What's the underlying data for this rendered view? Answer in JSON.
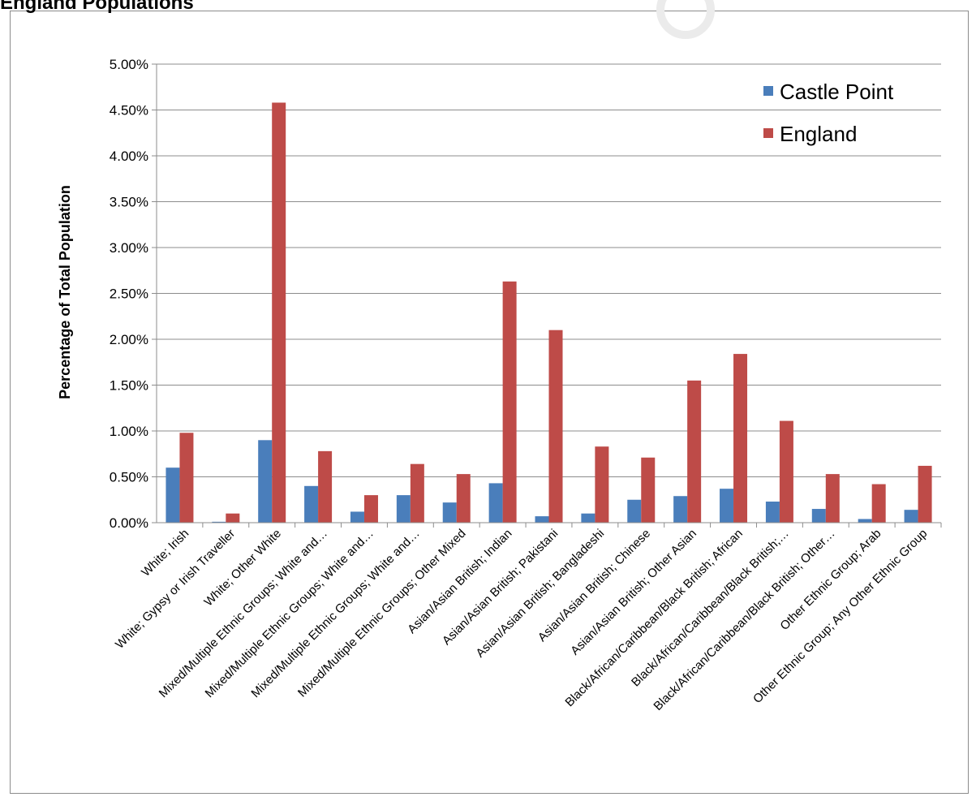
{
  "page_title": "England Populations",
  "chart_data": {
    "type": "bar",
    "title": "",
    "xlabel": "",
    "ylabel": "Percentage of Total Population",
    "ylim": [
      0,
      5
    ],
    "y_ticks": [
      "0.00%",
      "0.50%",
      "1.00%",
      "1.50%",
      "2.00%",
      "2.50%",
      "3.00%",
      "3.50%",
      "4.00%",
      "4.50%",
      "5.00%"
    ],
    "grid": true,
    "legend": "top-right",
    "categories": [
      "White; Irish",
      "White; Gypsy or Irish Traveller",
      "White; Other White",
      "Mixed/Multiple Ethnic Groups; White and…",
      "Mixed/Multiple Ethnic Groups; White and…",
      "Mixed/Multiple Ethnic Groups; White and…",
      "Mixed/Multiple Ethnic Groups; Other Mixed",
      "Asian/Asian British; Indian",
      "Asian/Asian British; Pakistani",
      "Asian/Asian British; Bangladeshi",
      "Asian/Asian British; Chinese",
      "Asian/Asian British; Other Asian",
      "Black/African/Caribbean/Black British; African",
      "Black/African/Caribbean/Black British;…",
      "Black/African/Caribbean/Black British; Other…",
      "Other Ethnic Group; Arab",
      "Other Ethnic Group; Any Other Ethnic Group"
    ],
    "series": [
      {
        "name": "Castle Point",
        "color": "#4a7ebb",
        "values": [
          0.6,
          0.01,
          0.9,
          0.4,
          0.12,
          0.3,
          0.22,
          0.43,
          0.07,
          0.1,
          0.25,
          0.29,
          0.37,
          0.23,
          0.15,
          0.04,
          0.14
        ]
      },
      {
        "name": "England",
        "color": "#be4b48",
        "values": [
          0.98,
          0.1,
          4.58,
          0.78,
          0.3,
          0.64,
          0.53,
          2.63,
          2.1,
          0.83,
          0.71,
          1.55,
          1.84,
          1.11,
          0.53,
          0.42,
          0.62
        ]
      }
    ]
  }
}
